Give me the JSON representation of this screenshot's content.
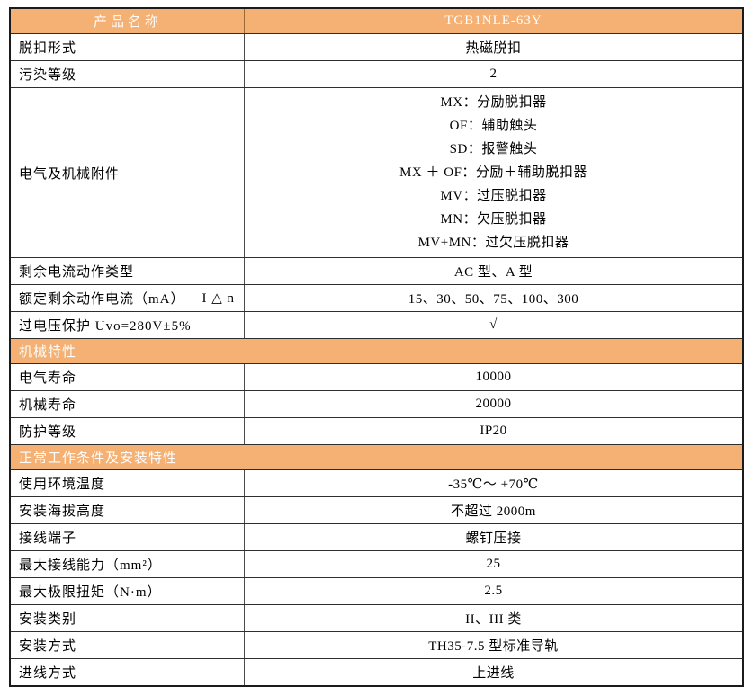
{
  "colors": {
    "accent_orange": "#f4b173",
    "header_text": "#fdfdfd",
    "body_text": "#000000",
    "border": "#1b1b1b",
    "background": "#ffffff"
  },
  "table": {
    "header": {
      "name_label": "产品名称",
      "model": "TGB1NLE-63Y"
    },
    "sections": [
      {
        "title": null,
        "rows": [
          {
            "label": "脱扣形式",
            "value": "热磁脱扣"
          },
          {
            "label": "污染等级",
            "value": "2"
          },
          {
            "label": "电气及机械附件",
            "value_lines": [
              "MX：分励脱扣器",
              "OF：辅助触头",
              "SD：报警触头",
              "MX ＋ OF：分励＋辅助脱扣器",
              "MV：过压脱扣器",
              "MN：欠压脱扣器",
              "MV+MN：过欠压脱扣器"
            ]
          },
          {
            "label": "剩余电流动作类型",
            "value": "AC 型、A 型"
          },
          {
            "label": "额定剩余动作电流（mA）",
            "label_suffix": "I △ n",
            "value": "15、30、50、75、100、300"
          },
          {
            "label": "过电压保护 Uvo=280V±5%",
            "value": "√"
          }
        ]
      },
      {
        "title": "机械特性",
        "rows": [
          {
            "label": "电气寿命",
            "value": "10000"
          },
          {
            "label": "机械寿命",
            "value": "20000"
          },
          {
            "label": "防护等级",
            "value": "IP20"
          }
        ]
      },
      {
        "title": "正常工作条件及安装特性",
        "rows": [
          {
            "label": "使用环境温度",
            "value": "-35℃～ +70℃"
          },
          {
            "label": "安装海拔高度",
            "value": "不超过 2000m"
          },
          {
            "label": "接线端子",
            "value": "螺钉压接"
          },
          {
            "label": "最大接线能力（mm²）",
            "value": "25"
          },
          {
            "label": "最大极限扭矩（N·m）",
            "value": "2.5"
          },
          {
            "label": "安装类别",
            "value": "II、III 类"
          },
          {
            "label": "安装方式",
            "value": "TH35-7.5 型标准导轨"
          },
          {
            "label": "进线方式",
            "value": "上进线"
          }
        ]
      }
    ]
  }
}
